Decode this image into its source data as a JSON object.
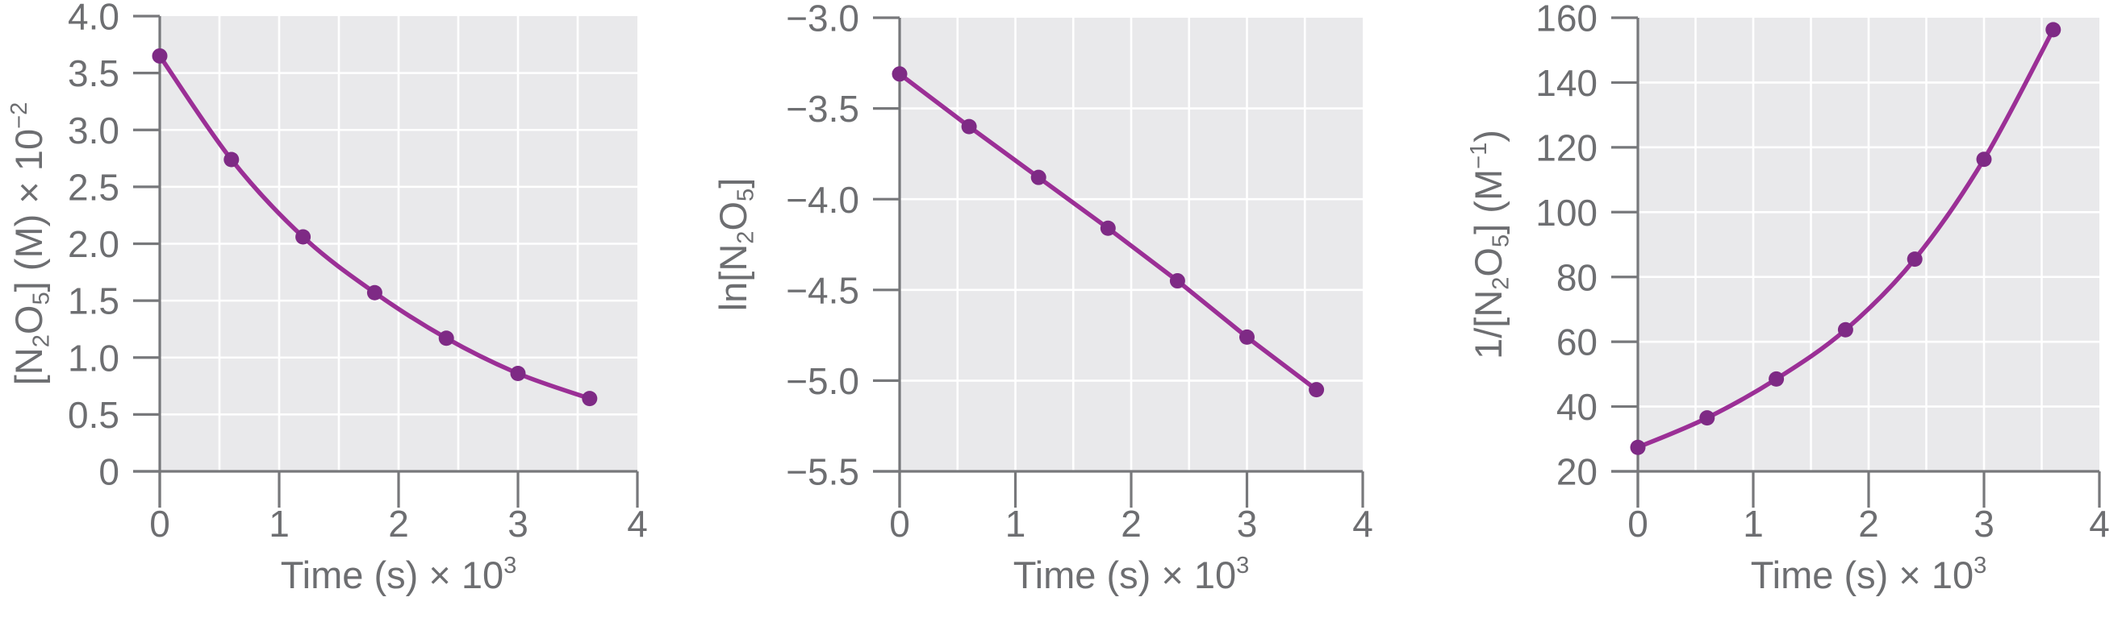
{
  "figure": {
    "background": "#ffffff",
    "palette": {
      "line": "#9b2f96",
      "marker": "#7e2a85",
      "plot_bg": "#e9e9eb",
      "grid": "#ffffff",
      "axis": "#77787b",
      "text": "#6d6e71"
    }
  },
  "chart_data": [
    {
      "type": "line",
      "title": "",
      "xlabel": "Time (s) × 10³",
      "ylabel": "[N₂O₅] (M) × 10⁻²",
      "x": [
        0,
        0.6,
        1.2,
        1.8,
        2.4,
        3.0,
        3.6
      ],
      "y": [
        3.65,
        2.74,
        2.06,
        1.57,
        1.17,
        0.86,
        0.64
      ],
      "xlim": [
        0,
        4
      ],
      "ylim": [
        0,
        4
      ],
      "xticks": [
        0,
        1,
        2,
        3,
        4
      ],
      "xtick_labels": [
        "0",
        "1",
        "2",
        "3",
        "4"
      ],
      "yticks": [
        0,
        0.5,
        1.0,
        1.5,
        2.0,
        2.5,
        3.0,
        3.5,
        4.0
      ],
      "ytick_labels": [
        "0",
        "0.5",
        "1.0",
        "1.5",
        "2.0",
        "2.5",
        "3.0",
        "3.5",
        "4.0"
      ],
      "xgrid": [
        0.5,
        1,
        1.5,
        2,
        2.5,
        3,
        3.5
      ],
      "ygrid": [
        0.5,
        1,
        1.5,
        2,
        2.5,
        3,
        3.5
      ],
      "grid": true,
      "legend": "none",
      "curve": "smooth"
    },
    {
      "type": "line",
      "title": "",
      "xlabel": "Time (s) × 10³",
      "ylabel": "ln[N₂O₅]",
      "x": [
        0,
        0.6,
        1.2,
        1.8,
        2.4,
        3.0,
        3.6
      ],
      "y": [
        -3.31,
        -3.6,
        -3.88,
        -4.16,
        -4.45,
        -4.76,
        -5.05
      ],
      "xlim": [
        0,
        4
      ],
      "ylim": [
        -5.5,
        -3.0
      ],
      "xticks": [
        0,
        1,
        2,
        3,
        4
      ],
      "xtick_labels": [
        "0",
        "1",
        "2",
        "3",
        "4"
      ],
      "yticks": [
        -3.0,
        -3.5,
        -4.0,
        -4.5,
        -5.0,
        -5.5
      ],
      "ytick_labels": [
        "−3.0",
        "−3.5",
        "−4.0",
        "−4.5",
        "−5.0",
        "−5.5"
      ],
      "xgrid": [
        0.5,
        1,
        1.5,
        2,
        2.5,
        3,
        3.5
      ],
      "ygrid": [
        -3.5,
        -4.0,
        -4.5,
        -5.0
      ],
      "grid": true,
      "legend": "none",
      "curve": "straight"
    },
    {
      "type": "line",
      "title": "",
      "xlabel": "Time (s) × 10³",
      "ylabel": "1/[N₂O₅] (M⁻¹)",
      "x": [
        0,
        0.6,
        1.2,
        1.8,
        2.4,
        3.0,
        3.6
      ],
      "y": [
        27.4,
        36.5,
        48.5,
        63.7,
        85.5,
        116.3,
        156.3
      ],
      "xlim": [
        0,
        4
      ],
      "ylim": [
        20,
        160
      ],
      "xticks": [
        0,
        1,
        2,
        3,
        4
      ],
      "xtick_labels": [
        "0",
        "1",
        "2",
        "3",
        "4"
      ],
      "yticks": [
        20,
        40,
        60,
        80,
        100,
        120,
        140,
        160
      ],
      "ytick_labels": [
        "20",
        "40",
        "60",
        "80",
        "100",
        "120",
        "140",
        "160"
      ],
      "xgrid": [
        0.5,
        1,
        1.5,
        2,
        2.5,
        3,
        3.5
      ],
      "ygrid": [
        40,
        60,
        80,
        100,
        120,
        140
      ],
      "grid": true,
      "legend": "none",
      "curve": "smooth"
    }
  ]
}
